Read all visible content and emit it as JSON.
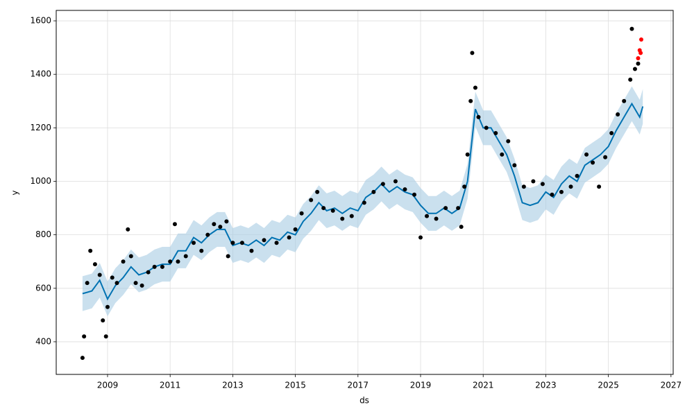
{
  "chart_data": {
    "type": "forecast",
    "xlabel": "ds",
    "ylabel": "y",
    "xlim": [
      2007.36,
      2027.07
    ],
    "ylim": [
      278,
      1639
    ],
    "xticks": [
      2009,
      2011,
      2013,
      2015,
      2017,
      2019,
      2021,
      2023,
      2025,
      2027
    ],
    "yticks": [
      400,
      600,
      800,
      1000,
      1200,
      1400,
      1600
    ],
    "grid": true,
    "series": [
      {
        "type": "band",
        "color": "#a6cbe3",
        "x": [
          2008.2,
          2008.5,
          2008.75,
          2009.0,
          2009.25,
          2009.5,
          2009.75,
          2010.0,
          2010.25,
          2010.5,
          2010.75,
          2011.0,
          2011.25,
          2011.5,
          2011.75,
          2012.0,
          2012.25,
          2012.5,
          2012.75,
          2013.0,
          2013.25,
          2013.5,
          2013.75,
          2014.0,
          2014.25,
          2014.5,
          2014.75,
          2015.0,
          2015.25,
          2015.5,
          2015.75,
          2016.0,
          2016.25,
          2016.5,
          2016.75,
          2017.0,
          2017.25,
          2017.5,
          2017.75,
          2018.0,
          2018.25,
          2018.5,
          2018.75,
          2019.0,
          2019.25,
          2019.5,
          2019.75,
          2020.0,
          2020.25,
          2020.5,
          2020.75,
          2021.0,
          2021.25,
          2021.5,
          2021.75,
          2022.0,
          2022.25,
          2022.5,
          2022.75,
          2023.0,
          2023.25,
          2023.5,
          2023.75,
          2024.0,
          2024.25,
          2024.5,
          2024.75,
          2025.0,
          2025.25,
          2025.5,
          2025.75,
          2026.0,
          2026.1
        ],
        "lower": [
          515,
          525,
          565,
          495,
          545,
          575,
          615,
          585,
          595,
          615,
          625,
          625,
          675,
          675,
          725,
          705,
          735,
          755,
          755,
          695,
          705,
          695,
          715,
          695,
          725,
          715,
          745,
          735,
          785,
          815,
          855,
          825,
          835,
          815,
          835,
          825,
          875,
          895,
          925,
          895,
          915,
          895,
          885,
          845,
          815,
          815,
          835,
          815,
          835,
          935,
          1205,
          1135,
          1135,
          1085,
          1035,
          955,
          855,
          845,
          855,
          895,
          875,
          925,
          955,
          935,
          995,
          1015,
          1035,
          1065,
          1125,
          1175,
          1225,
          1175,
          1215
        ],
        "upper": [
          645,
          655,
          695,
          625,
          675,
          705,
          745,
          715,
          725,
          745,
          755,
          755,
          805,
          805,
          855,
          835,
          865,
          885,
          885,
          825,
          835,
          825,
          845,
          825,
          855,
          845,
          875,
          865,
          915,
          945,
          985,
          955,
          965,
          945,
          965,
          955,
          1005,
          1025,
          1055,
          1025,
          1045,
          1025,
          1015,
          975,
          945,
          945,
          965,
          945,
          965,
          1065,
          1335,
          1265,
          1265,
          1215,
          1165,
          1085,
          985,
          975,
          985,
          1025,
          1005,
          1055,
          1085,
          1065,
          1125,
          1145,
          1165,
          1195,
          1255,
          1305,
          1355,
          1305,
          1345
        ]
      },
      {
        "type": "line",
        "color": "#0072b2",
        "x": [
          2008.2,
          2008.5,
          2008.75,
          2009.0,
          2009.25,
          2009.5,
          2009.75,
          2010.0,
          2010.25,
          2010.5,
          2010.75,
          2011.0,
          2011.25,
          2011.5,
          2011.75,
          2012.0,
          2012.25,
          2012.5,
          2012.75,
          2013.0,
          2013.25,
          2013.5,
          2013.75,
          2014.0,
          2014.25,
          2014.5,
          2014.75,
          2015.0,
          2015.25,
          2015.5,
          2015.75,
          2016.0,
          2016.25,
          2016.5,
          2016.75,
          2017.0,
          2017.25,
          2017.5,
          2017.75,
          2018.0,
          2018.25,
          2018.5,
          2018.75,
          2019.0,
          2019.25,
          2019.5,
          2019.75,
          2020.0,
          2020.25,
          2020.5,
          2020.75,
          2021.0,
          2021.25,
          2021.5,
          2021.75,
          2022.0,
          2022.25,
          2022.5,
          2022.75,
          2023.0,
          2023.25,
          2023.5,
          2023.75,
          2024.0,
          2024.25,
          2024.5,
          2024.75,
          2025.0,
          2025.25,
          2025.5,
          2025.75,
          2026.0,
          2026.1
        ],
        "values": [
          580,
          590,
          630,
          560,
          610,
          640,
          680,
          650,
          660,
          680,
          690,
          690,
          740,
          740,
          790,
          770,
          800,
          820,
          820,
          760,
          770,
          760,
          780,
          760,
          790,
          780,
          810,
          800,
          850,
          880,
          920,
          890,
          900,
          880,
          900,
          890,
          940,
          960,
          990,
          960,
          980,
          960,
          950,
          910,
          880,
          880,
          900,
          880,
          900,
          1000,
          1270,
          1200,
          1200,
          1150,
          1100,
          1020,
          920,
          910,
          920,
          960,
          940,
          990,
          1020,
          1000,
          1060,
          1080,
          1100,
          1130,
          1190,
          1240,
          1290,
          1240,
          1280
        ]
      },
      {
        "type": "scatter",
        "color": "#000000",
        "x": [
          2008.2,
          2008.25,
          2008.35,
          2008.45,
          2008.6,
          2008.75,
          2008.85,
          2008.95,
          2009.0,
          2009.15,
          2009.3,
          2009.5,
          2009.65,
          2009.75,
          2009.9,
          2010.1,
          2010.3,
          2010.5,
          2010.75,
          2011.0,
          2011.15,
          2011.25,
          2011.5,
          2011.75,
          2012.0,
          2012.2,
          2012.4,
          2012.6,
          2012.8,
          2012.85,
          2013.0,
          2013.3,
          2013.6,
          2014.0,
          2014.4,
          2014.8,
          2015.0,
          2015.2,
          2015.5,
          2015.7,
          2015.9,
          2016.2,
          2016.5,
          2016.8,
          2017.2,
          2017.5,
          2017.8,
          2018.2,
          2018.5,
          2018.8,
          2019.0,
          2019.2,
          2019.5,
          2019.8,
          2020.2,
          2020.3,
          2020.4,
          2020.5,
          2020.6,
          2020.65,
          2020.75,
          2020.85,
          2021.1,
          2021.4,
          2021.6,
          2021.8,
          2022.0,
          2022.3,
          2022.6,
          2022.9,
          2023.2,
          2023.5,
          2023.8,
          2024.0,
          2024.3,
          2024.5,
          2024.7,
          2024.9,
          2025.1,
          2025.3,
          2025.5,
          2025.7,
          2025.75,
          2025.85,
          2025.95
        ],
        "values": [
          340,
          420,
          620,
          740,
          690,
          650,
          480,
          420,
          530,
          640,
          620,
          700,
          820,
          720,
          620,
          610,
          660,
          680,
          680,
          700,
          840,
          700,
          720,
          770,
          740,
          800,
          840,
          830,
          850,
          720,
          770,
          770,
          740,
          780,
          770,
          790,
          820,
          880,
          930,
          960,
          900,
          890,
          860,
          870,
          920,
          960,
          990,
          1000,
          970,
          950,
          790,
          870,
          860,
          900,
          900,
          830,
          980,
          1100,
          1300,
          1480,
          1350,
          1240,
          1200,
          1180,
          1100,
          1150,
          1060,
          980,
          1000,
          990,
          950,
          960,
          980,
          1020,
          1100,
          1070,
          980,
          1090,
          1180,
          1250,
          1300,
          1380,
          1570,
          1420,
          1440
        ]
      },
      {
        "type": "scatter",
        "color": "#ff0000",
        "x": [
          2025.95,
          2026.0,
          2026.03,
          2026.05
        ],
        "values": [
          1460,
          1490,
          1480,
          1530
        ]
      }
    ]
  }
}
